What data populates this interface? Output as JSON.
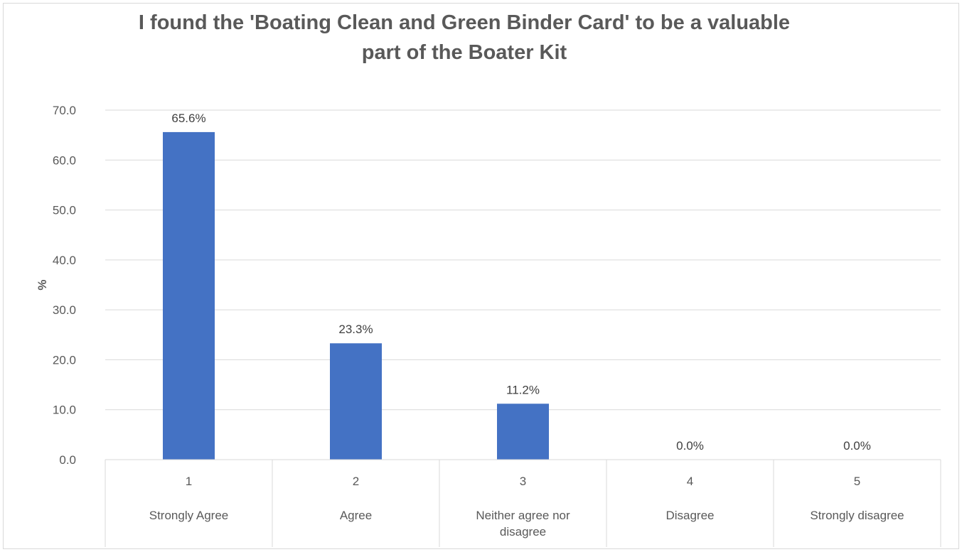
{
  "chart_data": {
    "type": "bar",
    "title_lines": [
      "I found the 'Boating Clean and Green Binder Card' to be a valuable",
      "part of the Boater Kit"
    ],
    "xlabel": "",
    "ylabel": "%",
    "ylim": [
      0,
      70
    ],
    "ytick_step": 10,
    "ytick_labels": [
      "0.0",
      "10.0",
      "20.0",
      "30.0",
      "40.0",
      "50.0",
      "60.0",
      "70.0"
    ],
    "grid": true,
    "legend": "none",
    "bar_color": "#4472c4",
    "categories": [
      {
        "code": "1",
        "label_lines": [
          "Strongly Agree"
        ]
      },
      {
        "code": "2",
        "label_lines": [
          "Agree"
        ]
      },
      {
        "code": "3",
        "label_lines": [
          "Neither agree nor",
          "disagree"
        ]
      },
      {
        "code": "4",
        "label_lines": [
          "Disagree"
        ]
      },
      {
        "code": "5",
        "label_lines": [
          "Strongly disagree"
        ]
      }
    ],
    "values": [
      65.6,
      23.3,
      11.2,
      0.0,
      0.0
    ],
    "data_labels": [
      "65.6%",
      "23.3%",
      "11.2%",
      "0.0%",
      "0.0%"
    ]
  }
}
